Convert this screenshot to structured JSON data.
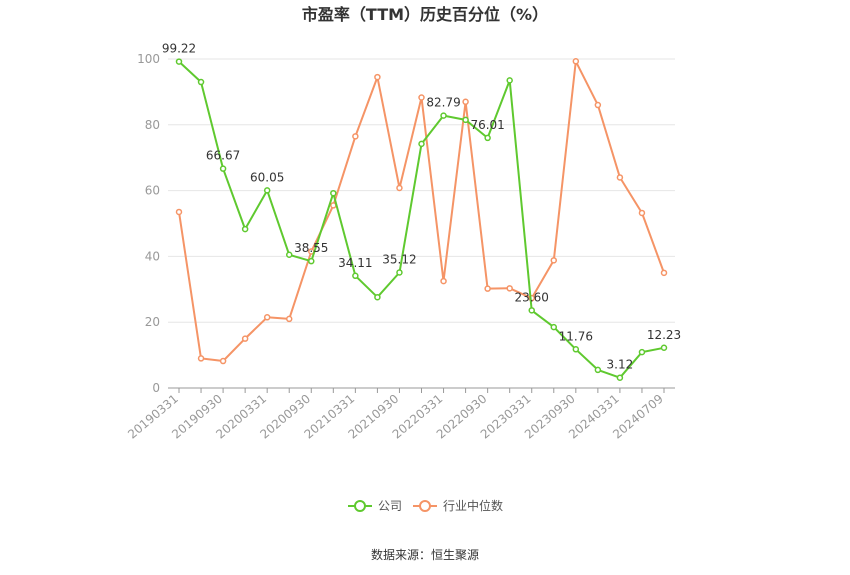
{
  "chart_data": {
    "type": "line",
    "title": "市盈率（TTM）历史百分位（%）",
    "source": "数据来源：恒生聚源",
    "ylim": [
      0,
      100
    ],
    "yticks": [
      0,
      20,
      40,
      60,
      80,
      100
    ],
    "grid": true,
    "legend_position": "bottom",
    "x": [
      "20190331",
      "20190630",
      "20190930",
      "20191231",
      "20200331",
      "20200630",
      "20200930",
      "20201231",
      "20210331",
      "20210630",
      "20210930",
      "20211231",
      "20220331",
      "20220630",
      "20220930",
      "20221231",
      "20230331",
      "20230630",
      "20230930",
      "20231231",
      "20240331",
      "20240630",
      "20240709"
    ],
    "xtick_labels": [
      "20190331",
      "20190930",
      "20200331",
      "20200930",
      "20210331",
      "20210930",
      "20220331",
      "20220930",
      "20230331",
      "20230930",
      "20240331",
      "20240709"
    ],
    "series": [
      {
        "name": "公司",
        "color": "#5fc92f",
        "values": [
          99.22,
          93,
          66.67,
          48.3,
          60.05,
          40.5,
          38.55,
          59.2,
          34.11,
          27.6,
          35.12,
          74.2,
          82.79,
          81.5,
          76.01,
          93.5,
          23.6,
          18.5,
          11.76,
          5.5,
          3.12,
          10.9,
          12.23
        ],
        "labels": [
          "99.22",
          "",
          "66.67",
          "",
          "60.05",
          "",
          "38.55",
          "",
          "34.11",
          "",
          "35.12",
          "",
          "82.79",
          "",
          "76.01",
          "",
          "23.60",
          "",
          "11.76",
          "",
          "3.12",
          "",
          "12.23"
        ]
      },
      {
        "name": "行业中位数",
        "color": "#f59466",
        "values": [
          53.5,
          9,
          8.2,
          15,
          21.5,
          21,
          41.5,
          55.5,
          76.5,
          94.5,
          60.8,
          88.3,
          32.5,
          87,
          30.2,
          30.3,
          27.3,
          38.8,
          99.3,
          86,
          64,
          53.2,
          35
        ]
      }
    ]
  }
}
